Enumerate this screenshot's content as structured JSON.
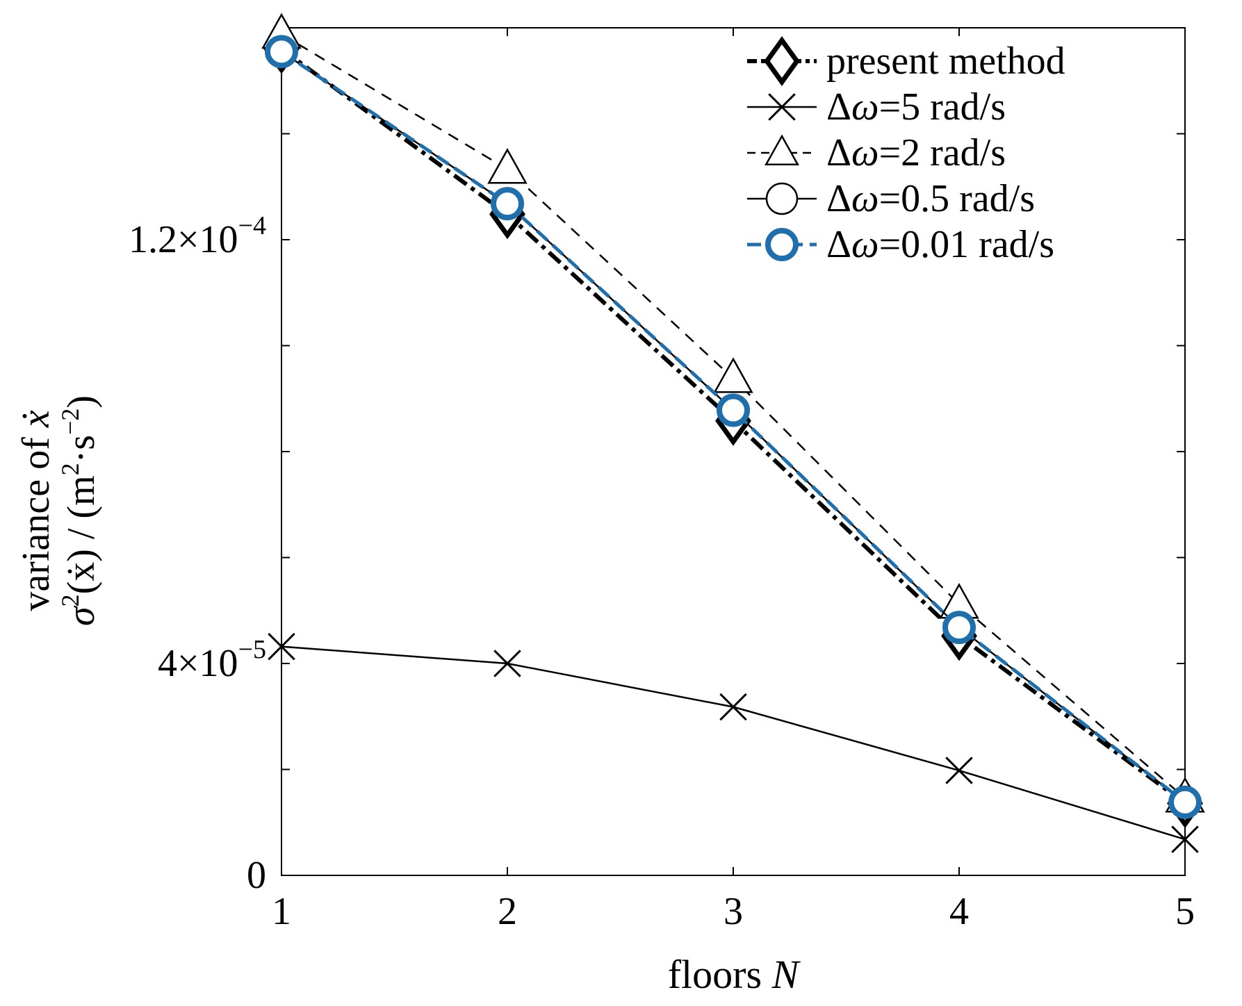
{
  "chart_data": {
    "type": "line",
    "xlabel": "floors N",
    "xlabel_parts": {
      "text": "floors ",
      "italic": "N"
    },
    "ylabel_line1": {
      "text": "variance of ",
      "italic": "ẋ"
    },
    "ylabel_line2": {
      "italic": "σ",
      "sup1": "2",
      "mid": "(ẋ) / (m",
      "sup2": "2",
      "mid2": "·s",
      "sup3": "−2",
      "end": ")"
    },
    "x": [
      1,
      2,
      3,
      4,
      5
    ],
    "xlim": [
      1,
      5
    ],
    "ylim": [
      0,
      0.00016
    ],
    "x_ticks": [
      {
        "value": 1,
        "label": "1"
      },
      {
        "value": 2,
        "label": "2"
      },
      {
        "value": 3,
        "label": "3"
      },
      {
        "value": 4,
        "label": "4"
      },
      {
        "value": 5,
        "label": "5"
      }
    ],
    "y_ticks": [
      0,
      2e-05,
      4e-05,
      6e-05,
      8e-05,
      0.0001,
      0.00012,
      0.00014
    ],
    "y_tick_labels": [
      {
        "value": 0,
        "mantissa": "0",
        "exponent": ""
      },
      {
        "value": 4e-05,
        "mantissa": "4×10",
        "exponent": "−5"
      },
      {
        "value": 0.00012,
        "mantissa": "1.2×10",
        "exponent": "−4"
      }
    ],
    "grid": false,
    "legend_position": "top-right",
    "series": [
      {
        "name": "present method",
        "name_parts": {
          "prefix": "",
          "italic": "",
          "text": "present method"
        },
        "values": [
          0.000156,
          0.0001248,
          8.58e-05,
          4.52e-05,
          1.36e-05
        ],
        "color": "#000000",
        "marker": "diamond",
        "dash": "dash-dot"
      },
      {
        "name": "Δω=5 rad/s",
        "name_parts": {
          "prefix": "Δ",
          "italic": "ω",
          "text": "=5 rad/s"
        },
        "values": [
          4.32e-05,
          4e-05,
          3.18e-05,
          1.98e-05,
          6.8e-06
        ],
        "color": "#000000",
        "marker": "x",
        "dash": "solid"
      },
      {
        "name": "Δω=2 rad/s",
        "name_parts": {
          "prefix": "Δ",
          "italic": "ω",
          "text": "=2 rad/s"
        },
        "values": [
          0.0001588,
          0.0001333,
          9.38e-05,
          5.12e-05,
          1.46e-05
        ],
        "color": "#000000",
        "marker": "triangle",
        "dash": "dashed"
      },
      {
        "name": "Δω=0.5 rad/s",
        "name_parts": {
          "prefix": "Δ",
          "italic": "ω",
          "text": "=0.5 rad/s"
        },
        "values": [
          0.0001555,
          0.0001268,
          8.78e-05,
          4.68e-05,
          1.38e-05
        ],
        "color": "#000000",
        "marker": "circle",
        "dash": "solid"
      },
      {
        "name": "Δω=0.01 rad/s",
        "name_parts": {
          "prefix": "Δ",
          "italic": "ω",
          "text": "=0.01 rad/s"
        },
        "values": [
          0.0001555,
          0.0001268,
          8.78e-05,
          4.68e-05,
          1.38e-05
        ],
        "color": "#1f6fad",
        "marker": "circle",
        "dash": "blue-dashed"
      }
    ]
  }
}
